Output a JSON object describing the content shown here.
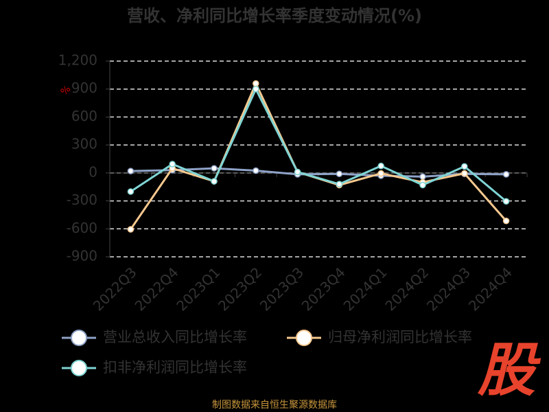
{
  "chart_data": {
    "type": "line",
    "title": "营收、净利同比增长率季度变动情况(%)",
    "y_unit": "%",
    "categories": [
      "2022Q3",
      "2022Q4",
      "2023Q1",
      "2023Q2",
      "2023Q3",
      "2023Q4",
      "2024Q1",
      "2024Q2",
      "2024Q3",
      "2024Q4"
    ],
    "series": [
      {
        "name": "营业总收入同比增长率",
        "color": "#8fa3c8",
        "values": [
          20,
          30,
          50,
          25,
          -15,
          -10,
          -30,
          -40,
          -10,
          -15
        ]
      },
      {
        "name": "归母净利润同比增长率",
        "color": "#f7c98f",
        "values": [
          -605,
          50,
          -90,
          960,
          10,
          -130,
          -5,
          -100,
          -5,
          -515
        ]
      },
      {
        "name": "扣非净利润同比增长率",
        "color": "#7fd4d4",
        "values": [
          -200,
          95,
          -90,
          900,
          10,
          -120,
          75,
          -130,
          70,
          -305
        ]
      }
    ],
    "ylim": [
      -900,
      1200
    ],
    "yticks": [
      {
        "value": 1200,
        "label": "1,200"
      },
      900,
      600,
      300,
      0,
      -300,
      -600,
      -900
    ],
    "grid": true,
    "legend": "bottom",
    "source": "制图数据来自恒生聚源数据库",
    "logo": "股"
  }
}
